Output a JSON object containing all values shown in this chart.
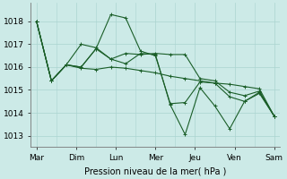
{
  "background_color": "#cceae7",
  "grid_color": "#aad4d0",
  "line_color": "#1a5e28",
  "days": [
    "Mar",
    "Dim",
    "Lun",
    "Mer",
    "Jeu",
    "Ven",
    "Sam"
  ],
  "xlabel": "Pression niveau de la mer( hPa )",
  "ylim": [
    1012.5,
    1018.8
  ],
  "yticks": [
    1013,
    1014,
    1015,
    1016,
    1017,
    1018
  ],
  "series": [
    [
      1018.0,
      1015.4,
      1016.1,
      1016.0,
      1016.8,
      1018.3,
      1018.15,
      1016.7,
      1016.5,
      1014.4,
      1014.45,
      1015.35,
      1015.3,
      1014.7,
      1014.5,
      1014.85,
      1013.85
    ],
    [
      1018.0,
      1015.4,
      1016.1,
      1015.95,
      1015.9,
      1016.0,
      1015.95,
      1015.85,
      1015.75,
      1015.6,
      1015.5,
      1015.4,
      1015.3,
      1015.25,
      1015.15,
      1015.05,
      1013.85
    ],
    [
      1018.0,
      1015.4,
      1016.1,
      1016.0,
      1016.8,
      1016.35,
      1016.15,
      1016.6,
      1016.55,
      1014.35,
      1013.05,
      1015.1,
      1014.3,
      1013.3,
      1014.5,
      1014.9,
      1013.85
    ],
    [
      1018.0,
      1015.4,
      1016.1,
      1017.0,
      1016.85,
      1016.35,
      1016.6,
      1016.55,
      1016.6,
      1016.55,
      1016.55,
      1015.5,
      1015.4,
      1014.9,
      1014.75,
      1014.95,
      1013.85
    ]
  ],
  "marker": "+",
  "lw": 0.8,
  "ms": 3.0
}
